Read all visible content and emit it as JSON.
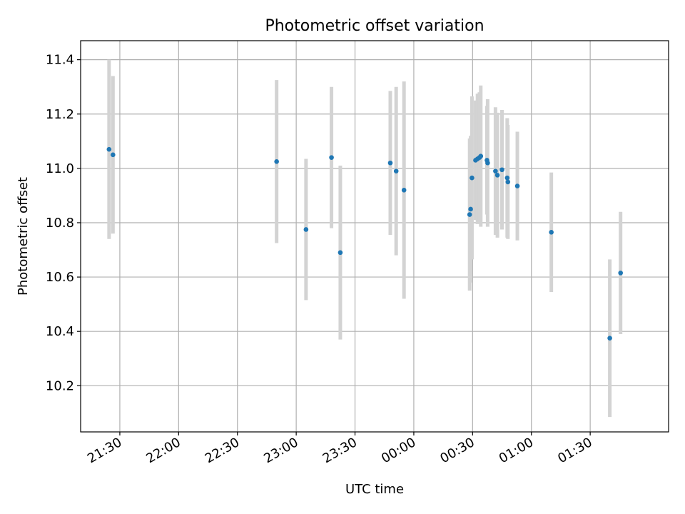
{
  "chart_data": {
    "type": "scatter",
    "title": "Photometric offset variation",
    "xlabel": "UTC time",
    "ylabel": "Photometric offset",
    "x_format": "HH:MM",
    "xlim": [
      "2024-01-01T21:10:00",
      "2024-01-02T02:10:00"
    ],
    "ylim": [
      10.03,
      11.47
    ],
    "xticks": [
      "2024-01-01T21:30:00",
      "2024-01-01T22:00:00",
      "2024-01-01T22:30:00",
      "2024-01-01T23:00:00",
      "2024-01-01T23:30:00",
      "2024-01-02T00:00:00",
      "2024-01-02T00:30:00",
      "2024-01-02T01:00:00",
      "2024-01-02T01:30:00"
    ],
    "xtick_labels": [
      "21:30",
      "22:00",
      "22:30",
      "23:00",
      "23:30",
      "00:00",
      "00:30",
      "01:00",
      "01:30"
    ],
    "yticks": [
      10.2,
      10.4,
      10.6,
      10.8,
      11.0,
      11.2,
      11.4
    ],
    "ytick_labels": [
      "10.2",
      "10.4",
      "10.6",
      "10.8",
      "11.0",
      "11.2",
      "11.4"
    ],
    "grid": true,
    "marker_color": "#1f77b4",
    "errorbar_color": "#d3d3d3",
    "points": [
      {
        "x": "2024-01-01T21:24:30",
        "y": 11.07,
        "err": 0.33
      },
      {
        "x": "2024-01-01T21:26:30",
        "y": 11.05,
        "err": 0.29
      },
      {
        "x": "2024-01-01T22:50:00",
        "y": 11.025,
        "err": 0.3
      },
      {
        "x": "2024-01-01T23:05:00",
        "y": 10.775,
        "err": 0.26
      },
      {
        "x": "2024-01-01T23:18:00",
        "y": 11.04,
        "err": 0.26
      },
      {
        "x": "2024-01-01T23:22:30",
        "y": 10.69,
        "err": 0.32
      },
      {
        "x": "2024-01-01T23:48:00",
        "y": 11.02,
        "err": 0.265
      },
      {
        "x": "2024-01-01T23:51:00",
        "y": 10.99,
        "err": 0.31
      },
      {
        "x": "2024-01-01T23:55:00",
        "y": 10.92,
        "err": 0.4
      },
      {
        "x": "2024-01-02T00:28:30",
        "y": 10.83,
        "err": 0.28
      },
      {
        "x": "2024-01-02T00:29:00",
        "y": 10.85,
        "err": 0.27
      },
      {
        "x": "2024-01-02T00:29:40",
        "y": 10.965,
        "err": 0.3
      },
      {
        "x": "2024-01-02T00:31:30",
        "y": 11.03,
        "err": 0.22
      },
      {
        "x": "2024-01-02T00:32:30",
        "y": 11.035,
        "err": 0.24
      },
      {
        "x": "2024-01-02T00:33:30",
        "y": 11.04,
        "err": 0.24
      },
      {
        "x": "2024-01-02T00:34:10",
        "y": 11.045,
        "err": 0.26
      },
      {
        "x": "2024-01-02T00:37:20",
        "y": 11.03,
        "err": 0.2
      },
      {
        "x": "2024-01-02T00:37:40",
        "y": 11.02,
        "err": 0.235
      },
      {
        "x": "2024-01-02T00:41:40",
        "y": 10.99,
        "err": 0.235
      },
      {
        "x": "2024-01-02T00:42:40",
        "y": 10.975,
        "err": 0.23
      },
      {
        "x": "2024-01-02T00:45:00",
        "y": 10.995,
        "err": 0.22
      },
      {
        "x": "2024-01-02T00:47:40",
        "y": 10.965,
        "err": 0.22
      },
      {
        "x": "2024-01-02T00:48:00",
        "y": 10.95,
        "err": 0.21
      },
      {
        "x": "2024-01-02T00:52:50",
        "y": 10.935,
        "err": 0.2
      },
      {
        "x": "2024-01-02T01:10:10",
        "y": 10.765,
        "err": 0.22
      },
      {
        "x": "2024-01-02T01:40:00",
        "y": 10.375,
        "err": 0.29
      },
      {
        "x": "2024-01-02T01:45:30",
        "y": 10.615,
        "err": 0.225
      }
    ]
  }
}
